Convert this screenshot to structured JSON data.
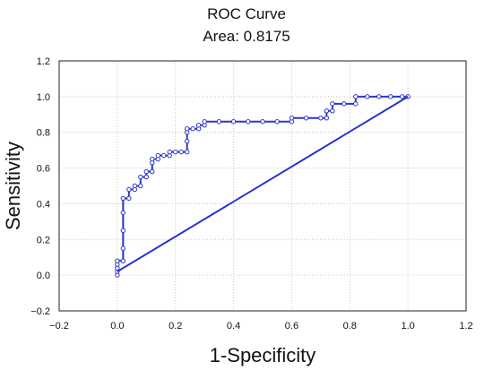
{
  "chart_data": {
    "type": "line",
    "title": "ROC Curve",
    "subtitle": "Area: 0.8175",
    "xlabel": "1-Specificity",
    "ylabel": "Sensitivity",
    "xlim": [
      -0.2,
      1.2
    ],
    "ylim": [
      -0.2,
      1.2
    ],
    "xticks": [
      -0.2,
      0.0,
      0.2,
      0.4,
      0.6,
      0.8,
      1.0,
      1.2
    ],
    "yticks": [
      -0.2,
      0.0,
      0.2,
      0.4,
      0.6,
      0.8,
      1.0,
      1.2
    ],
    "xtick_labels": [
      "−0.2",
      "0.0",
      "0.2",
      "0.4",
      "0.6",
      "0.8",
      "1.0",
      "1.2"
    ],
    "ytick_labels": [
      "−0.2",
      "0.0",
      "0.2",
      "0.4",
      "0.6",
      "0.8",
      "1.0",
      "1.2"
    ],
    "grid": true,
    "color": "#2a35c8",
    "series": [
      {
        "marker": "circle",
        "points": [
          [
            0.0,
            0.0
          ],
          [
            0.0,
            0.02
          ],
          [
            0.0,
            0.04
          ],
          [
            0.0,
            0.06
          ],
          [
            0.0,
            0.08
          ],
          [
            0.02,
            0.08
          ],
          [
            0.02,
            0.15
          ],
          [
            0.02,
            0.25
          ],
          [
            0.02,
            0.35
          ],
          [
            0.02,
            0.43
          ],
          [
            0.04,
            0.43
          ],
          [
            0.04,
            0.48
          ],
          [
            0.06,
            0.48
          ],
          [
            0.06,
            0.5
          ],
          [
            0.08,
            0.5
          ],
          [
            0.08,
            0.55
          ],
          [
            0.1,
            0.55
          ],
          [
            0.1,
            0.58
          ],
          [
            0.12,
            0.58
          ],
          [
            0.12,
            0.63
          ],
          [
            0.12,
            0.65
          ],
          [
            0.14,
            0.65
          ],
          [
            0.14,
            0.67
          ],
          [
            0.16,
            0.67
          ],
          [
            0.18,
            0.67
          ],
          [
            0.18,
            0.69
          ],
          [
            0.2,
            0.69
          ],
          [
            0.22,
            0.69
          ],
          [
            0.24,
            0.69
          ],
          [
            0.24,
            0.75
          ],
          [
            0.24,
            0.8
          ],
          [
            0.24,
            0.82
          ],
          [
            0.26,
            0.82
          ],
          [
            0.28,
            0.82
          ],
          [
            0.28,
            0.84
          ],
          [
            0.3,
            0.84
          ],
          [
            0.3,
            0.86
          ],
          [
            0.35,
            0.86
          ],
          [
            0.4,
            0.86
          ],
          [
            0.45,
            0.86
          ],
          [
            0.5,
            0.86
          ],
          [
            0.55,
            0.86
          ],
          [
            0.6,
            0.86
          ],
          [
            0.6,
            0.88
          ],
          [
            0.65,
            0.88
          ],
          [
            0.7,
            0.88
          ],
          [
            0.72,
            0.88
          ],
          [
            0.72,
            0.92
          ],
          [
            0.74,
            0.92
          ],
          [
            0.74,
            0.96
          ],
          [
            0.78,
            0.96
          ],
          [
            0.82,
            0.96
          ],
          [
            0.82,
            1.0
          ],
          [
            0.86,
            1.0
          ],
          [
            0.9,
            1.0
          ],
          [
            0.94,
            1.0
          ],
          [
            0.98,
            1.0
          ],
          [
            1.0,
            1.0
          ]
        ]
      },
      {
        "marker": "none",
        "points": [
          [
            0.0,
            0.02
          ],
          [
            1.0,
            1.0
          ]
        ]
      }
    ]
  }
}
